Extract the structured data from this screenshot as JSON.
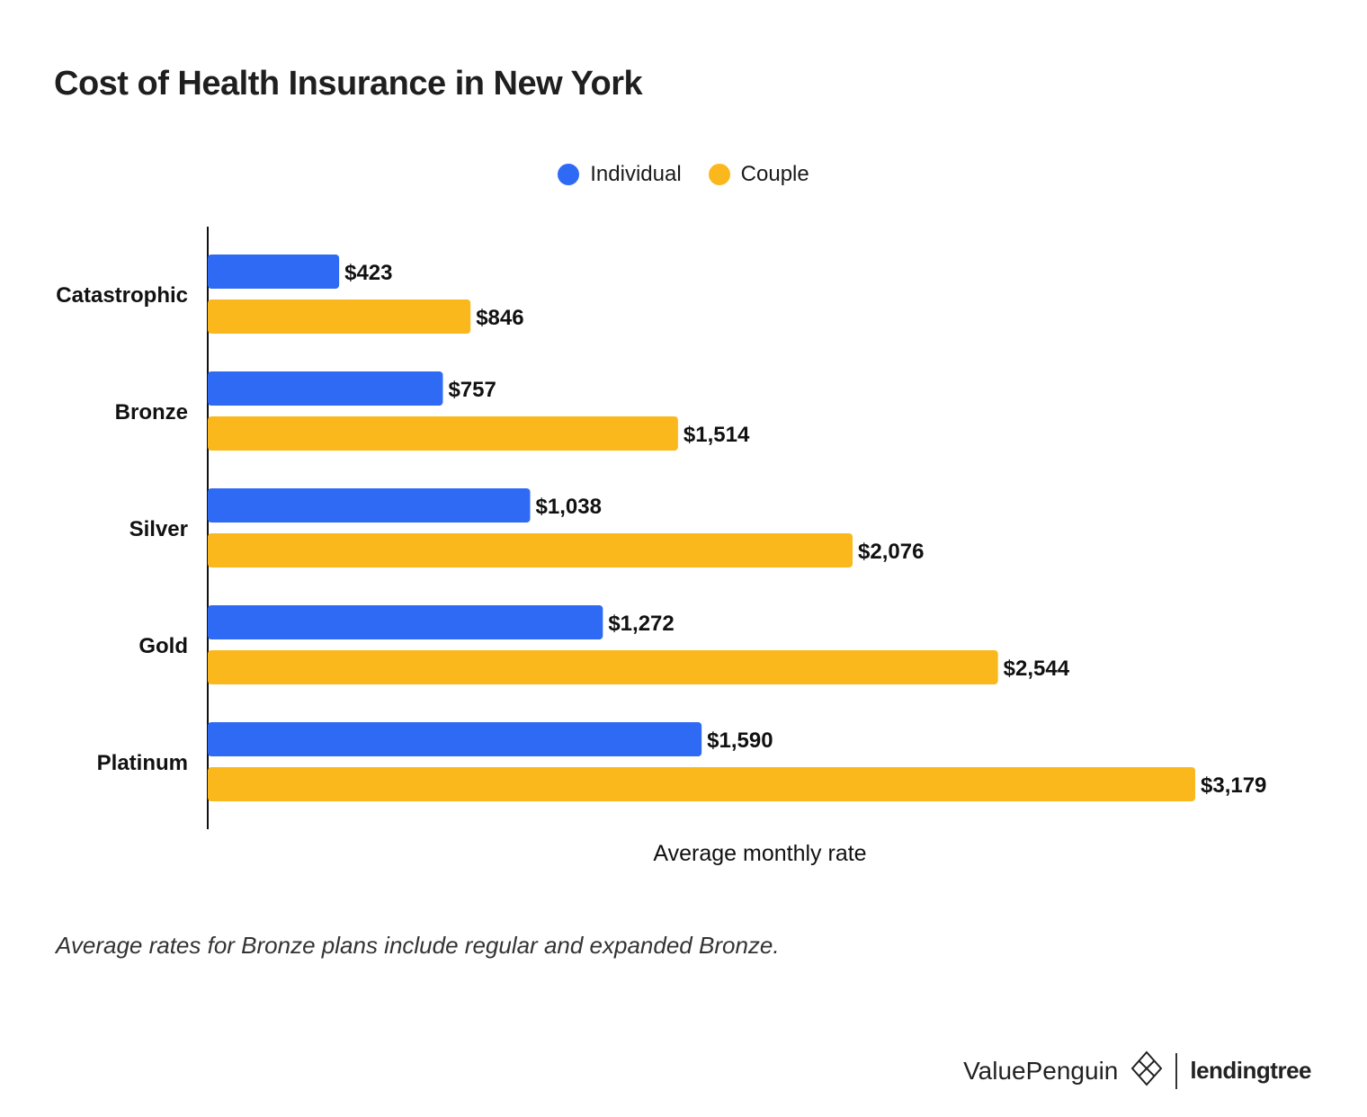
{
  "title": "Cost of Health Insurance in New York",
  "legend": {
    "individual": "Individual",
    "couple": "Couple"
  },
  "chart_data": {
    "type": "bar",
    "orientation": "horizontal",
    "categories": [
      "Catastrophic",
      "Bronze",
      "Silver",
      "Gold",
      "Platinum"
    ],
    "series": [
      {
        "name": "Individual",
        "color": "#2f6af5",
        "values": [
          423,
          757,
          1038,
          1272,
          1590
        ],
        "labels": [
          "$423",
          "$757",
          "$1,038",
          "$1,272",
          "$1,590"
        ]
      },
      {
        "name": "Couple",
        "color": "#fbb81c",
        "values": [
          846,
          1514,
          2076,
          2544,
          3179
        ],
        "labels": [
          "$846",
          "$1,514",
          "$2,076",
          "$2,544",
          "$3,179"
        ]
      }
    ],
    "xlabel": "Average monthly rate",
    "ylabel": "",
    "xlim": [
      0,
      3179
    ],
    "grid": false,
    "legend_position": "top-center"
  },
  "footnote": "Average rates for Bronze plans include regular and expanded Bronze.",
  "branding": {
    "valuepenguin": "ValuePenguin",
    "lendingtree": "lendingtree",
    "valuepenguin_icon": "valuepenguin-logo-icon"
  }
}
